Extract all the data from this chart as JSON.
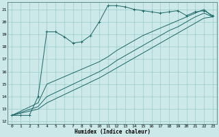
{
  "xlabel": "Humidex (Indice chaleur)",
  "bg_color": "#cce8e8",
  "grid_color": "#99cccc",
  "line_color": "#1a6666",
  "xlim": [
    -0.5,
    23.5
  ],
  "ylim": [
    11.8,
    21.6
  ],
  "yticks": [
    12,
    13,
    14,
    15,
    16,
    17,
    18,
    19,
    20,
    21
  ],
  "xticks": [
    0,
    1,
    2,
    3,
    4,
    5,
    6,
    7,
    8,
    9,
    10,
    11,
    12,
    13,
    14,
    15,
    16,
    17,
    18,
    19,
    20,
    21,
    22,
    23
  ],
  "series": [
    {
      "x": [
        0,
        1,
        2,
        3,
        4,
        5,
        6,
        7,
        8,
        9,
        10,
        11,
        12,
        13,
        14,
        15,
        16,
        17,
        18,
        19,
        20,
        21,
        22,
        23
      ],
      "y": [
        12.5,
        12.5,
        12.5,
        14.0,
        19.2,
        19.2,
        18.8,
        18.3,
        18.4,
        18.9,
        20.0,
        21.3,
        21.3,
        21.2,
        21.0,
        20.9,
        20.8,
        20.7,
        20.8,
        20.9,
        20.5,
        20.8,
        20.9,
        20.5
      ],
      "marker": true
    },
    {
      "x": [
        0,
        3,
        4,
        10,
        11,
        12,
        13,
        14,
        15,
        16,
        17,
        18,
        19,
        20,
        21,
        22,
        23
      ],
      "y": [
        12.5,
        13.0,
        13.5,
        15.5,
        15.9,
        16.3,
        16.7,
        17.1,
        17.5,
        17.9,
        18.3,
        18.7,
        19.1,
        19.5,
        19.9,
        20.3,
        20.4
      ],
      "marker": false
    },
    {
      "x": [
        0,
        3,
        4,
        10,
        11,
        12,
        13,
        14,
        15,
        16,
        17,
        18,
        19,
        20,
        21,
        22,
        23
      ],
      "y": [
        12.5,
        13.2,
        14.0,
        16.0,
        16.4,
        16.9,
        17.3,
        17.7,
        18.1,
        18.5,
        18.9,
        19.3,
        19.6,
        20.0,
        20.4,
        20.7,
        20.4
      ],
      "marker": false
    },
    {
      "x": [
        0,
        3,
        4,
        10,
        11,
        12,
        13,
        14,
        15,
        16,
        17,
        18,
        19,
        20,
        21,
        22,
        23
      ],
      "y": [
        12.5,
        13.5,
        15.0,
        16.8,
        17.2,
        17.7,
        18.1,
        18.5,
        18.9,
        19.2,
        19.5,
        19.8,
        20.1,
        20.4,
        20.7,
        21.0,
        20.4
      ],
      "marker": false
    }
  ]
}
